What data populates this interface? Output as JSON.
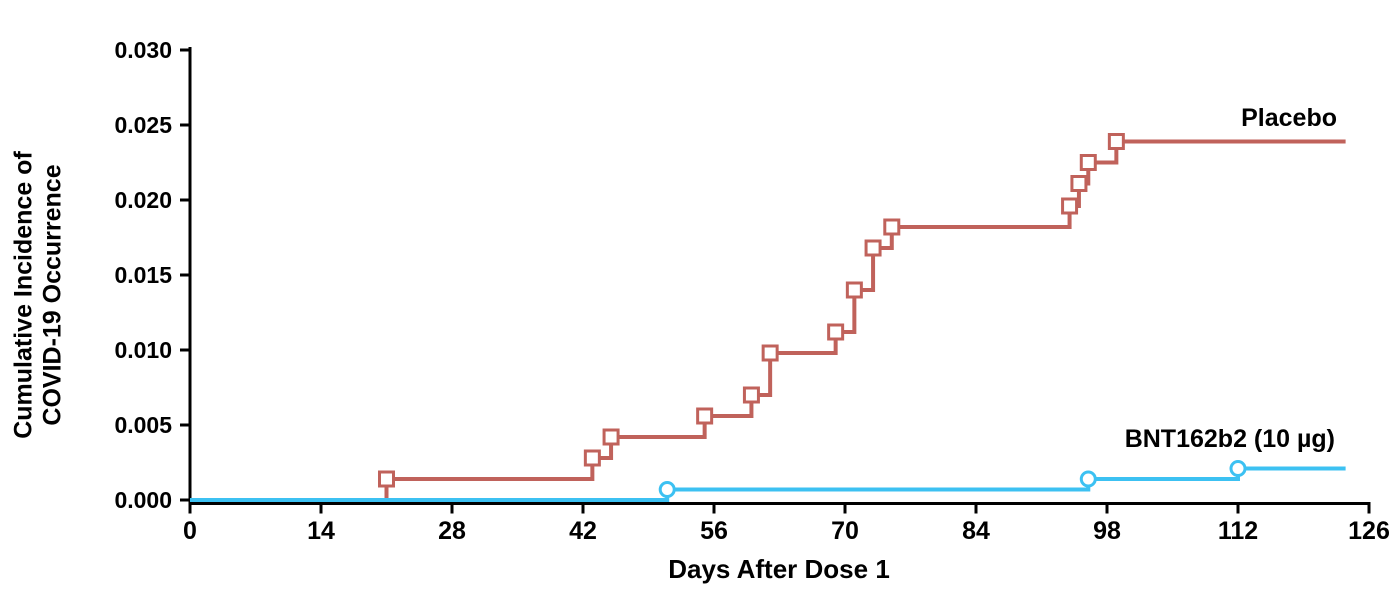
{
  "chart_data": {
    "type": "line",
    "subtype": "step-post cumulative incidence (Kaplan-Meier style)",
    "title": "",
    "xlabel": "Days After Dose 1",
    "ylabel_lines": [
      "Cumulative Incidence of",
      "COVID-19 Occurrence"
    ],
    "xlim": [
      0,
      126
    ],
    "ylim": [
      0.0,
      0.03
    ],
    "x_ticks": [
      0,
      14,
      28,
      42,
      56,
      70,
      84,
      98,
      112,
      126
    ],
    "y_tick_labels": [
      "0.000",
      "0.005",
      "0.010",
      "0.015",
      "0.020",
      "0.025",
      "0.030"
    ],
    "grid": false,
    "legend_position": "inline labels at right end of each curve",
    "follow_up_end_day": 123.5,
    "axis_color": "#000000",
    "background_color": "#ffffff",
    "series": [
      {
        "label": "Placebo",
        "color": "#c0625b",
        "marker": "open-square",
        "start": {
          "day": 0,
          "cumulative_incidence": 0.0
        },
        "events": [
          {
            "day": 21,
            "cumulative_incidence": 0.0014
          },
          {
            "day": 43,
            "cumulative_incidence": 0.0028
          },
          {
            "day": 45,
            "cumulative_incidence": 0.0042
          },
          {
            "day": 55,
            "cumulative_incidence": 0.0056
          },
          {
            "day": 60,
            "cumulative_incidence": 0.007
          },
          {
            "day": 62,
            "cumulative_incidence": 0.0098
          },
          {
            "day": 69,
            "cumulative_incidence": 0.0112
          },
          {
            "day": 71,
            "cumulative_incidence": 0.014
          },
          {
            "day": 73,
            "cumulative_incidence": 0.0168
          },
          {
            "day": 75,
            "cumulative_incidence": 0.0182
          },
          {
            "day": 94,
            "cumulative_incidence": 0.0196
          },
          {
            "day": 95,
            "cumulative_incidence": 0.0211
          },
          {
            "day": 96,
            "cumulative_incidence": 0.0225
          },
          {
            "day": 99,
            "cumulative_incidence": 0.0239
          }
        ]
      },
      {
        "label": "BNT162b2 (10 µg)",
        "color": "#3cc1f2",
        "marker": "open-circle",
        "start": {
          "day": 0,
          "cumulative_incidence": 0.0
        },
        "events": [
          {
            "day": 51,
            "cumulative_incidence": 0.0007
          },
          {
            "day": 96,
            "cumulative_incidence": 0.0014
          },
          {
            "day": 112,
            "cumulative_incidence": 0.0021
          }
        ]
      }
    ]
  }
}
